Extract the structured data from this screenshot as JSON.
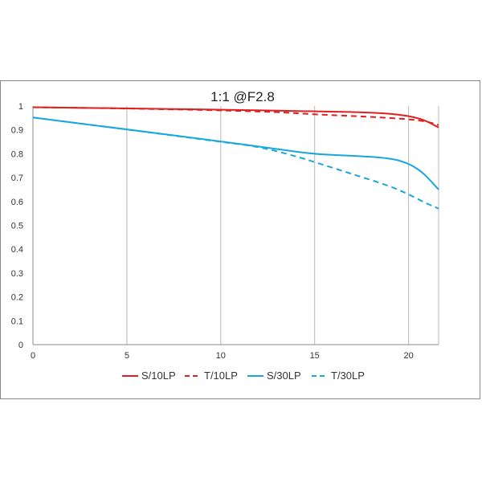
{
  "chart_data": {
    "type": "line",
    "title": "1:1  @F2.8",
    "xlim": [
      0,
      21.6
    ],
    "ylim": [
      0,
      1
    ],
    "x_ticks": [
      0,
      5,
      10,
      15,
      20
    ],
    "y_ticks": [
      0,
      0.1,
      0.2,
      0.3,
      0.4,
      0.5,
      0.6,
      0.7,
      0.8,
      0.9,
      1
    ],
    "x_tick_labels": [
      "0",
      "5",
      "10",
      "15",
      "20"
    ],
    "y_tick_labels": [
      "0",
      "0.1",
      "0.2",
      "0.3",
      "0.4",
      "0.5",
      "0.6",
      "0.7",
      "0.8",
      "0.9",
      "1"
    ],
    "grid": "vertical",
    "legend_position": "bottom",
    "series": [
      {
        "name": "S/10LP",
        "color": "#e02020",
        "dash": "solid",
        "points": [
          [
            0,
            0.995
          ],
          [
            5,
            0.99
          ],
          [
            10,
            0.985
          ],
          [
            15,
            0.978
          ],
          [
            18,
            0.973
          ],
          [
            19.5,
            0.965
          ],
          [
            20.5,
            0.95
          ],
          [
            21,
            0.935
          ],
          [
            21.6,
            0.91
          ]
        ]
      },
      {
        "name": "T/10LP",
        "color": "#e02020",
        "dash": "dashed",
        "points": [
          [
            0,
            0.995
          ],
          [
            5,
            0.99
          ],
          [
            10,
            0.982
          ],
          [
            13,
            0.975
          ],
          [
            15,
            0.965
          ],
          [
            18,
            0.955
          ],
          [
            20,
            0.945
          ],
          [
            21,
            0.935
          ],
          [
            21.6,
            0.92
          ]
        ]
      },
      {
        "name": "S/30LP",
        "color": "#1aa7dc",
        "dash": "solid",
        "points": [
          [
            0,
            0.952
          ],
          [
            5,
            0.902
          ],
          [
            10,
            0.852
          ],
          [
            13,
            0.82
          ],
          [
            15,
            0.798
          ],
          [
            17,
            0.792
          ],
          [
            19,
            0.782
          ],
          [
            20,
            0.76
          ],
          [
            20.7,
            0.725
          ],
          [
            21.2,
            0.685
          ],
          [
            21.6,
            0.65
          ]
        ]
      },
      {
        "name": "T/30LP",
        "color": "#1aa7dc",
        "dash": "dashed",
        "points": [
          [
            0,
            0.952
          ],
          [
            5,
            0.902
          ],
          [
            10,
            0.85
          ],
          [
            12,
            0.83
          ],
          [
            14,
            0.79
          ],
          [
            15,
            0.765
          ],
          [
            17,
            0.715
          ],
          [
            19,
            0.665
          ],
          [
            20,
            0.63
          ],
          [
            21,
            0.59
          ],
          [
            21.6,
            0.57
          ]
        ]
      }
    ]
  }
}
